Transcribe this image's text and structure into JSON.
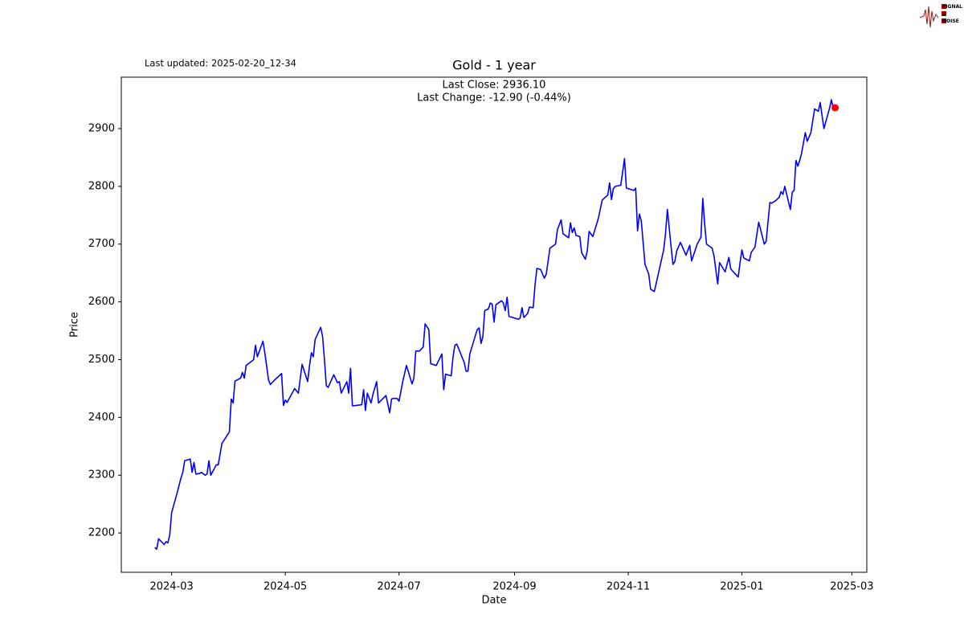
{
  "logo": [
    "SIGNAL",
    "2",
    "NOISE"
  ],
  "chart_data": {
    "type": "line",
    "title": "Gold - 1 year",
    "subtitle": "Last updated: 2025-02-20_12-34",
    "annotations": [
      "Last Close: 2936.10",
      "Last Change: -12.90 (-0.44%)"
    ],
    "x_label": "Date",
    "y_label": "Price",
    "xlim": [
      19756,
      20156
    ],
    "ylim": [
      2132,
      2989
    ],
    "xticks": [
      {
        "value": 19783,
        "label": "2024-03"
      },
      {
        "value": 19844,
        "label": "2024-05"
      },
      {
        "value": 19905,
        "label": "2024-07"
      },
      {
        "value": 19967,
        "label": "2024-09"
      },
      {
        "value": 20028,
        "label": "2024-11"
      },
      {
        "value": 20089,
        "label": "2025-01"
      },
      {
        "value": 20148,
        "label": "2025-03"
      }
    ],
    "yticks": [
      2200,
      2300,
      2400,
      2500,
      2600,
      2700,
      2800,
      2900
    ],
    "grid": false,
    "marker_color": "#ff0000",
    "series": [
      {
        "name": "Gold",
        "color": "#0000ff",
        "x": [
          19774,
          19775,
          19776,
          19779,
          19780,
          19781,
          19782,
          19783,
          19786,
          19788,
          19789,
          19790,
          19793,
          19794,
          19795,
          19796,
          19798,
          19799,
          19801,
          19802,
          19803,
          19804,
          19806,
          19807,
          19808,
          19810,
          19814,
          19815,
          19816,
          19817,
          19820,
          19821,
          19822,
          19823,
          19827,
          19828,
          19829,
          19832,
          19833,
          19835,
          19836,
          19838,
          19842,
          19843,
          19844,
          19845,
          19849,
          19851,
          19853,
          19856,
          19857,
          19858,
          19859,
          19860,
          19863,
          19864,
          19865,
          19866,
          19867,
          19870,
          19872,
          19873,
          19874,
          19877,
          19878,
          19879,
          19880,
          19885,
          19886,
          19887,
          19888,
          19890,
          19891,
          19893,
          19894,
          19898,
          19900,
          19901,
          19902,
          19904,
          19905,
          19907,
          19909,
          19912,
          19913,
          19914,
          19916,
          19918,
          19919,
          19921,
          19922,
          19925,
          19928,
          19929,
          19930,
          19933,
          19934,
          19935,
          19936,
          19940,
          19941,
          19942,
          19943,
          19946,
          19947,
          19948,
          19949,
          19950,
          19951,
          19953,
          19954,
          19955,
          19956,
          19957,
          19960,
          19961,
          19962,
          19963,
          19964,
          19969,
          19970,
          19971,
          19972,
          19974,
          19975,
          19977,
          19978,
          19979,
          19981,
          19983,
          19984,
          19986,
          19989,
          19990,
          19992,
          19993,
          19996,
          19997,
          19998,
          19999,
          20000,
          20002,
          20003,
          20005,
          20006,
          20007,
          20009,
          20012,
          20014,
          20017,
          20018,
          20019,
          20020,
          20021,
          20024,
          20026,
          20027,
          20031,
          20032,
          20033,
          20034,
          20035,
          20037,
          20039,
          20040,
          20042,
          20043,
          20047,
          20048,
          20049,
          20051,
          20052,
          20053,
          20054,
          20056,
          20059,
          20061,
          20062,
          20065,
          20067,
          20068,
          20069,
          20070,
          20073,
          20074,
          20076,
          20077,
          20080,
          20081,
          20082,
          20083,
          20087,
          20088,
          20089,
          20090,
          20093,
          20094,
          20096,
          20098,
          20101,
          20102,
          20104,
          20105,
          20107,
          20109,
          20110,
          20111,
          20112,
          20114,
          20115,
          20116,
          20117,
          20118,
          20119,
          20120,
          20121,
          20123,
          20124,
          20126,
          20128,
          20130,
          20131,
          20133,
          20136,
          20137,
          20138,
          20139
        ],
        "values": [
          2175,
          2172,
          2190,
          2180,
          2185,
          2183,
          2197,
          2235,
          2270,
          2295,
          2305,
          2325,
          2328,
          2305,
          2322,
          2302,
          2303,
          2305,
          2300,
          2302,
          2325,
          2300,
          2312,
          2318,
          2318,
          2355,
          2375,
          2432,
          2425,
          2463,
          2468,
          2478,
          2468,
          2490,
          2500,
          2525,
          2505,
          2532,
          2512,
          2465,
          2457,
          2464,
          2476,
          2421,
          2430,
          2426,
          2450,
          2442,
          2492,
          2462,
          2490,
          2512,
          2505,
          2535,
          2556,
          2540,
          2500,
          2455,
          2452,
          2474,
          2460,
          2462,
          2442,
          2462,
          2442,
          2485,
          2420,
          2422,
          2448,
          2412,
          2442,
          2425,
          2440,
          2462,
          2425,
          2438,
          2408,
          2432,
          2433,
          2433,
          2428,
          2462,
          2490,
          2458,
          2468,
          2515,
          2515,
          2522,
          2562,
          2552,
          2493,
          2490,
          2510,
          2448,
          2475,
          2472,
          2505,
          2525,
          2527,
          2495,
          2480,
          2480,
          2510,
          2542,
          2552,
          2555,
          2528,
          2540,
          2585,
          2588,
          2598,
          2596,
          2565,
          2595,
          2602,
          2598,
          2585,
          2608,
          2575,
          2570,
          2572,
          2590,
          2573,
          2580,
          2591,
          2590,
          2630,
          2658,
          2656,
          2641,
          2648,
          2693,
          2700,
          2725,
          2742,
          2718,
          2711,
          2737,
          2720,
          2728,
          2715,
          2713,
          2685,
          2674,
          2688,
          2722,
          2713,
          2745,
          2776,
          2785,
          2806,
          2777,
          2796,
          2800,
          2802,
          2848,
          2797,
          2793,
          2797,
          2723,
          2752,
          2740,
          2665,
          2648,
          2622,
          2618,
          2632,
          2690,
          2718,
          2760,
          2695,
          2665,
          2670,
          2688,
          2703,
          2681,
          2698,
          2671,
          2700,
          2712,
          2779,
          2735,
          2700,
          2693,
          2680,
          2631,
          2668,
          2652,
          2665,
          2677,
          2657,
          2643,
          2668,
          2690,
          2676,
          2671,
          2686,
          2695,
          2738,
          2700,
          2705,
          2772,
          2771,
          2775,
          2781,
          2791,
          2786,
          2800,
          2773,
          2760,
          2790,
          2793,
          2845,
          2835,
          2845,
          2857,
          2893,
          2878,
          2893,
          2934,
          2930,
          2945,
          2900,
          2935,
          2950,
          2935,
          2936.1
        ]
      }
    ]
  }
}
